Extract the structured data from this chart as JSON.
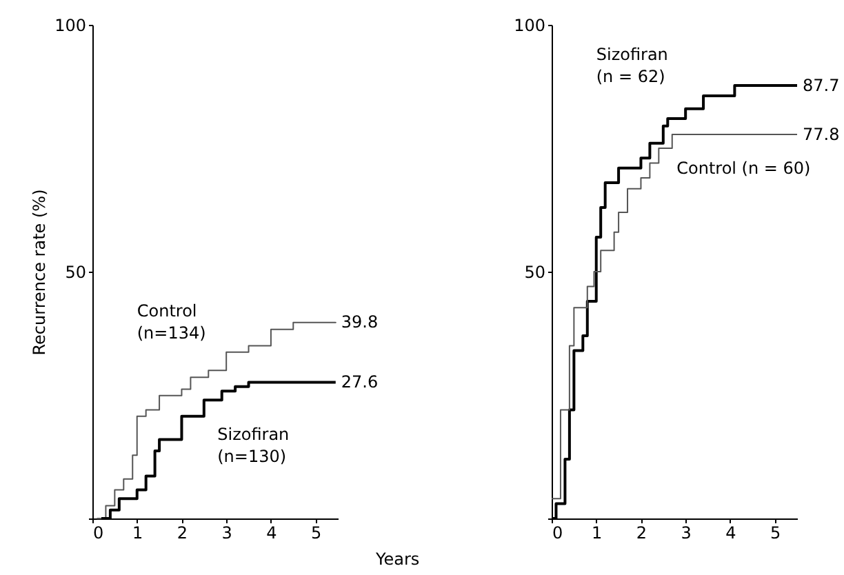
{
  "chart_data": [
    {
      "type": "step",
      "xlabel": "Years",
      "ylabel": "Recurrence rate (%)",
      "xlim": [
        0,
        5.5
      ],
      "ylim": [
        0,
        100
      ],
      "xticks": [
        0,
        1,
        2,
        3,
        4,
        5
      ],
      "yticks": [
        {
          "value": 0,
          "label": null
        },
        50,
        100
      ],
      "grid": false,
      "series": [
        {
          "name": "Control (n=134)",
          "color": "#555555",
          "x": [
            0.1,
            0.3,
            0.5,
            0.7,
            0.9,
            1.0,
            1.2,
            1.5,
            2.0,
            2.2,
            2.6,
            3.0,
            3.5,
            4.0,
            4.5,
            5.45
          ],
          "values": [
            0,
            2.6,
            5.8,
            8,
            12.8,
            20.7,
            22,
            24.9,
            26.2,
            28.6,
            30,
            33.7,
            35,
            38.3,
            39.7,
            39.8
          ]
        },
        {
          "name": "Sizofiran (n=130)",
          "color": "#000000",
          "x": [
            0.2,
            0.4,
            0.6,
            1.0,
            1.2,
            1.4,
            1.5,
            2.0,
            2.5,
            2.9,
            3.2,
            3.5,
            5.45
          ],
          "values": [
            0,
            1.7,
            4,
            5.8,
            8.6,
            13.7,
            16,
            20.7,
            24,
            25.8,
            26.7,
            27.6,
            27.6
          ]
        }
      ],
      "annotations": [
        "39.8",
        "27.6"
      ]
    },
    {
      "type": "step",
      "xlim": [
        0,
        5.5
      ],
      "ylim": [
        0,
        100
      ],
      "xticks": [
        0,
        1,
        2,
        3,
        4,
        5
      ],
      "yticks": [
        {
          "value": 0,
          "label": null
        },
        50,
        100
      ],
      "grid": false,
      "series": [
        {
          "name": "Sizofiran (n = 62)",
          "color": "#000000",
          "x": [
            0,
            0.1,
            0.3,
            0.4,
            0.5,
            0.7,
            0.8,
            1.0,
            1.1,
            1.2,
            1.5,
            2.0,
            2.2,
            2.5,
            2.6,
            3.0,
            3.4,
            4.1,
            5.5
          ],
          "values": [
            0,
            3,
            12,
            22,
            34,
            37,
            44,
            57,
            63,
            68,
            71,
            73,
            76,
            79.5,
            81,
            83,
            85.6,
            87.7,
            87.7
          ]
        },
        {
          "name": "Control (n = 60)",
          "color": "#555555",
          "x": [
            0,
            0.2,
            0.4,
            0.5,
            0.8,
            0.95,
            1.1,
            1.4,
            1.5,
            1.7,
            2.0,
            2.2,
            2.4,
            2.7,
            5.5
          ],
          "values": [
            4,
            22,
            35,
            42.7,
            47,
            50,
            54.3,
            58,
            62,
            66.8,
            69,
            72,
            75,
            77.8,
            77.8
          ]
        }
      ],
      "annotations": [
        "87.7",
        "77.8"
      ]
    }
  ]
}
